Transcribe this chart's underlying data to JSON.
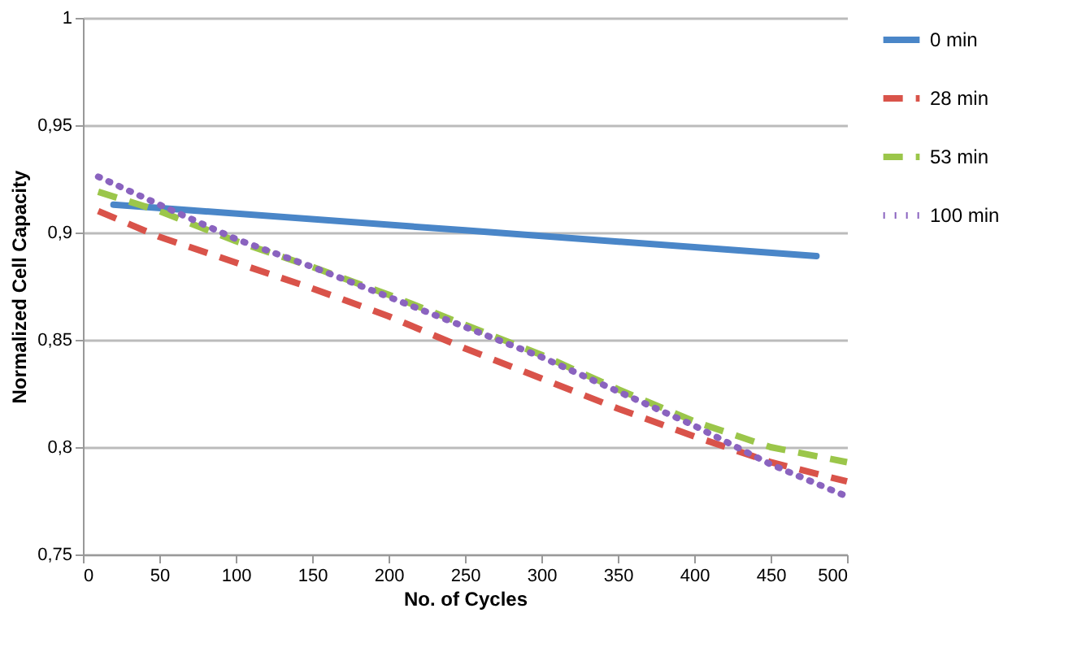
{
  "chart_data": {
    "type": "line",
    "xlabel": "No. of Cycles",
    "ylabel": "Normalized Cell Capacity",
    "xlim": [
      0,
      500
    ],
    "xticks": [
      0,
      50,
      100,
      150,
      200,
      250,
      300,
      350,
      400,
      450,
      500
    ],
    "ylim": [
      0.75,
      1
    ],
    "yticks": [
      {
        "value": 0.75,
        "label": "0,75"
      },
      {
        "value": 0.8,
        "label": "0,8"
      },
      {
        "value": 0.85,
        "label": "0,85"
      },
      {
        "value": 0.9,
        "label": "0,9"
      },
      {
        "value": 0.95,
        "label": "0,95"
      },
      {
        "value": 1,
        "label": "1"
      }
    ],
    "grid": "y",
    "legend": "right",
    "marker": "none",
    "series": [
      {
        "name": "0 min",
        "color": "#4a86c8",
        "line_style": "solid",
        "x": [
          20,
          250,
          480
        ],
        "values": [
          0.913,
          0.901,
          0.889
        ]
      },
      {
        "name": "28 min",
        "color": "#d9534a",
        "line_style": "dashed",
        "x": [
          10,
          50,
          100,
          150,
          200,
          250,
          300,
          350,
          400,
          450,
          500
        ],
        "values": [
          0.91,
          0.898,
          0.886,
          0.874,
          0.861,
          0.846,
          0.832,
          0.818,
          0.805,
          0.793,
          0.784
        ]
      },
      {
        "name": "53 min",
        "color": "#9bc64a",
        "line_style": "dashed",
        "x": [
          10,
          50,
          100,
          150,
          200,
          250,
          300,
          350,
          400,
          450,
          500
        ],
        "values": [
          0.919,
          0.91,
          0.896,
          0.884,
          0.871,
          0.857,
          0.843,
          0.827,
          0.812,
          0.8,
          0.793
        ]
      },
      {
        "name": "100 min",
        "color": "#8a63bf",
        "line_style": "dotted",
        "x": [
          10,
          50,
          100,
          150,
          200,
          250,
          300,
          350,
          400,
          450,
          500
        ],
        "values": [
          0.926,
          0.913,
          0.897,
          0.884,
          0.87,
          0.856,
          0.842,
          0.826,
          0.81,
          0.792,
          0.777
        ]
      }
    ]
  }
}
